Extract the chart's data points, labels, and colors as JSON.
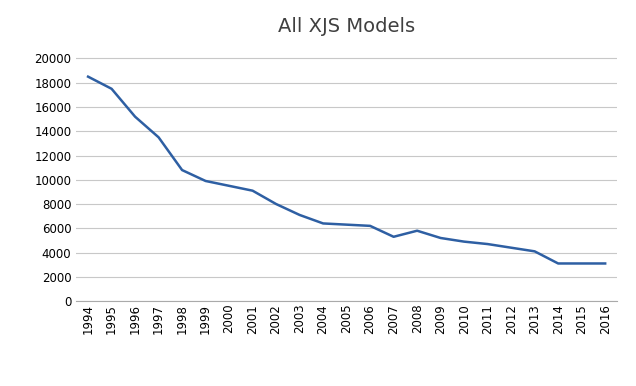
{
  "title": "All XJS Models",
  "years": [
    1994,
    1995,
    1996,
    1997,
    1998,
    1999,
    2000,
    2001,
    2002,
    2003,
    2004,
    2005,
    2006,
    2007,
    2008,
    2009,
    2010,
    2011,
    2012,
    2013,
    2014,
    2015,
    2016
  ],
  "values": [
    18500,
    17500,
    15200,
    13500,
    10800,
    9900,
    9500,
    9100,
    8000,
    7100,
    6400,
    6300,
    6200,
    5300,
    5800,
    5200,
    4900,
    4700,
    4400,
    4100,
    3100,
    3100,
    3100
  ],
  "line_color": "#2E5FA3",
  "line_width": 1.8,
  "ylim": [
    0,
    21000
  ],
  "yticks": [
    0,
    2000,
    4000,
    6000,
    8000,
    10000,
    12000,
    14000,
    16000,
    18000,
    20000
  ],
  "background_color": "#ffffff",
  "grid_color": "#c8c8c8",
  "title_fontsize": 14,
  "tick_fontsize": 8.5
}
